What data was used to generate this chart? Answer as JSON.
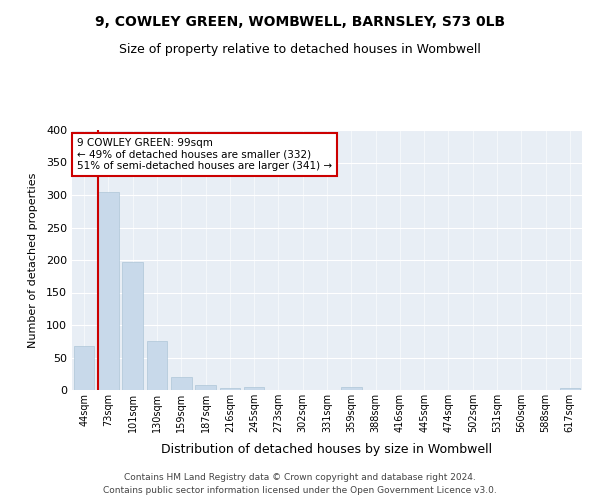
{
  "title": "9, COWLEY GREEN, WOMBWELL, BARNSLEY, S73 0LB",
  "subtitle": "Size of property relative to detached houses in Wombwell",
  "xlabel": "Distribution of detached houses by size in Wombwell",
  "ylabel": "Number of detached properties",
  "bar_labels": [
    "44sqm",
    "73sqm",
    "101sqm",
    "130sqm",
    "159sqm",
    "187sqm",
    "216sqm",
    "245sqm",
    "273sqm",
    "302sqm",
    "331sqm",
    "359sqm",
    "388sqm",
    "416sqm",
    "445sqm",
    "474sqm",
    "502sqm",
    "531sqm",
    "560sqm",
    "588sqm",
    "617sqm"
  ],
  "bar_values": [
    67,
    304,
    197,
    76,
    20,
    8,
    3,
    4,
    0,
    0,
    0,
    4,
    0,
    0,
    0,
    0,
    0,
    0,
    0,
    0,
    3
  ],
  "property_bin_index": 1,
  "annotation_line1": "9 COWLEY GREEN: 99sqm",
  "annotation_line2": "← 49% of detached houses are smaller (332)",
  "annotation_line3": "51% of semi-detached houses are larger (341) →",
  "bar_color": "#c8d9ea",
  "bar_edge_color": "#aec6d8",
  "vline_color": "#cc0000",
  "annotation_box_edge": "#cc0000",
  "background_color": "#ffffff",
  "plot_bg_color": "#e8eef5",
  "footer": "Contains HM Land Registry data © Crown copyright and database right 2024.\nContains public sector information licensed under the Open Government Licence v3.0.",
  "ylim": [
    0,
    400
  ],
  "yticks": [
    0,
    50,
    100,
    150,
    200,
    250,
    300,
    350,
    400
  ]
}
